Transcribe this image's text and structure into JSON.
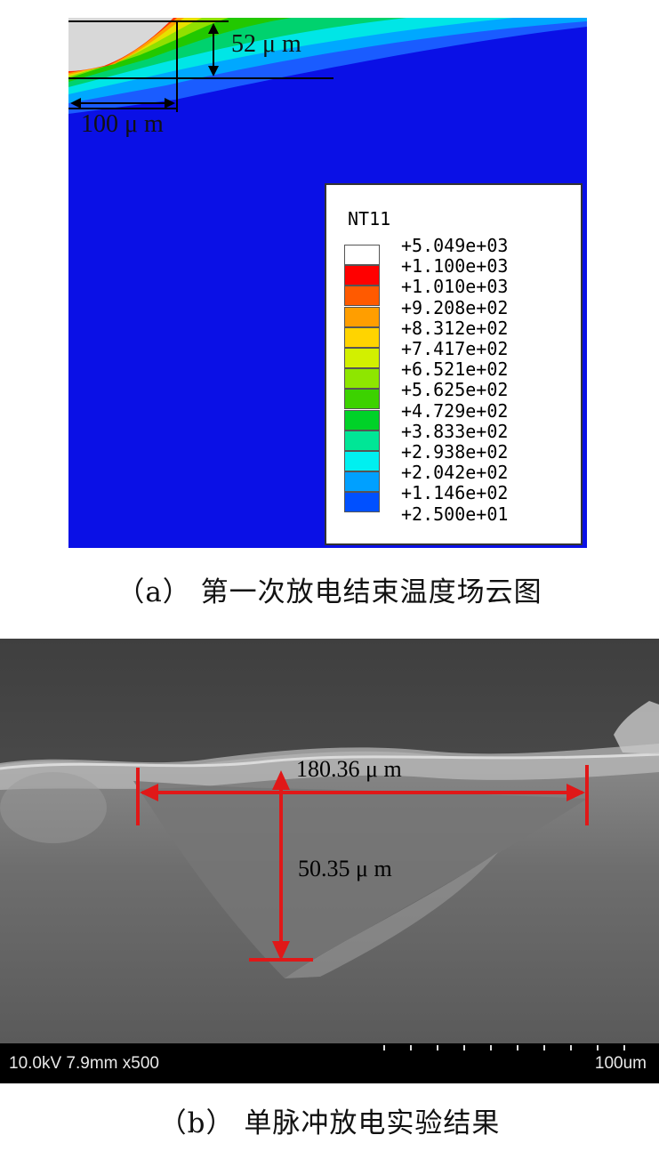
{
  "panel_a": {
    "depth_label": "52 μ m",
    "width_label": "100 μ m",
    "legend": {
      "title": "NT11",
      "entries": [
        {
          "label": "+5.049e+03",
          "color": "#ffffff"
        },
        {
          "label": "+1.100e+03",
          "color": "#ff0000"
        },
        {
          "label": "+1.010e+03",
          "color": "#ff5a00"
        },
        {
          "label": "+9.208e+02",
          "color": "#ff9e00"
        },
        {
          "label": "+8.312e+02",
          "color": "#ffd400"
        },
        {
          "label": "+7.417e+02",
          "color": "#d2f000"
        },
        {
          "label": "+6.521e+02",
          "color": "#8ee600"
        },
        {
          "label": "+5.625e+02",
          "color": "#3cd200"
        },
        {
          "label": "+4.729e+02",
          "color": "#00d228"
        },
        {
          "label": "+3.833e+02",
          "color": "#00e696"
        },
        {
          "label": "+2.938e+02",
          "color": "#00f0f0"
        },
        {
          "label": "+2.042e+02",
          "color": "#00a0ff"
        },
        {
          "label": "+1.146e+02",
          "color": "#0050ff"
        },
        {
          "label": "+2.500e+01",
          "color": "#0000ff"
        }
      ]
    }
  },
  "caption_a": "（a） 第一次放电结束温度场云图",
  "panel_b": {
    "width_label": "180.36 μ m",
    "depth_label": "50.35 μ m",
    "sem_info": "10.0kV 7.9mm x500",
    "scale_label": "100um"
  },
  "caption_b": "（b） 单脉冲放电实验结果"
}
